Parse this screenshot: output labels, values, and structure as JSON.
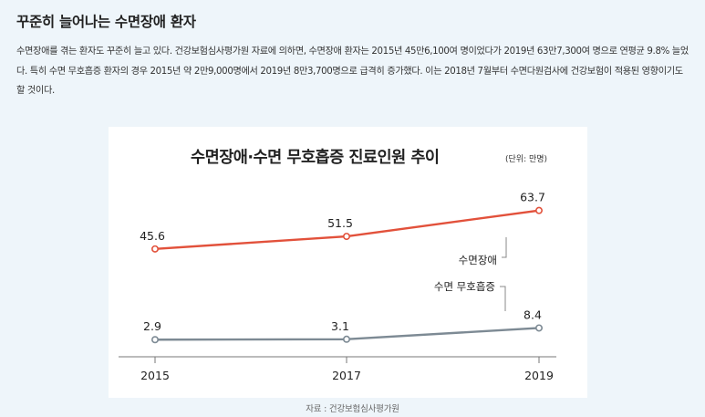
{
  "article": {
    "headline": "꾸준히 늘어나는 수면장애 환자",
    "paragraph": "수면장애를 겪는 환자도 꾸준히 늘고 있다. 건강보험심사평가원 자료에 의하면, 수면장애 환자는 2015년 45만6,100여 명이었다가 2019년 63만7,300여 명으로 연평균 9.8% 늘었다. 특히 수면 무호흡증 환자의 경우 2015년 약 2만9,000명에서 2019년 8만3,700명으로 급격히 증가했다. 이는 2018년 7월부터 수면다원검사에 건강보험이 적용된 영향이기도 할 것이다.",
    "source": "자료 : 건강보험심사평가원"
  },
  "chart_data": {
    "type": "line",
    "title": "수면장애·수면 무호흡증 진료인원 추이",
    "unit": "(단위: 만명)",
    "categories": [
      "2015",
      "2017",
      "2019"
    ],
    "ylim": [
      0,
      70
    ],
    "grid": false,
    "series": [
      {
        "name": "수면장애",
        "values": [
          45.6,
          51.5,
          63.7
        ],
        "labels": [
          "45.6",
          "51.5",
          "63.7"
        ],
        "color": "#e2513b"
      },
      {
        "name": "수면 무호흡증",
        "values": [
          2.9,
          3.1,
          8.4
        ],
        "labels": [
          "2.9",
          "3.1",
          "8.4"
        ],
        "color": "#7d8a94"
      }
    ]
  }
}
